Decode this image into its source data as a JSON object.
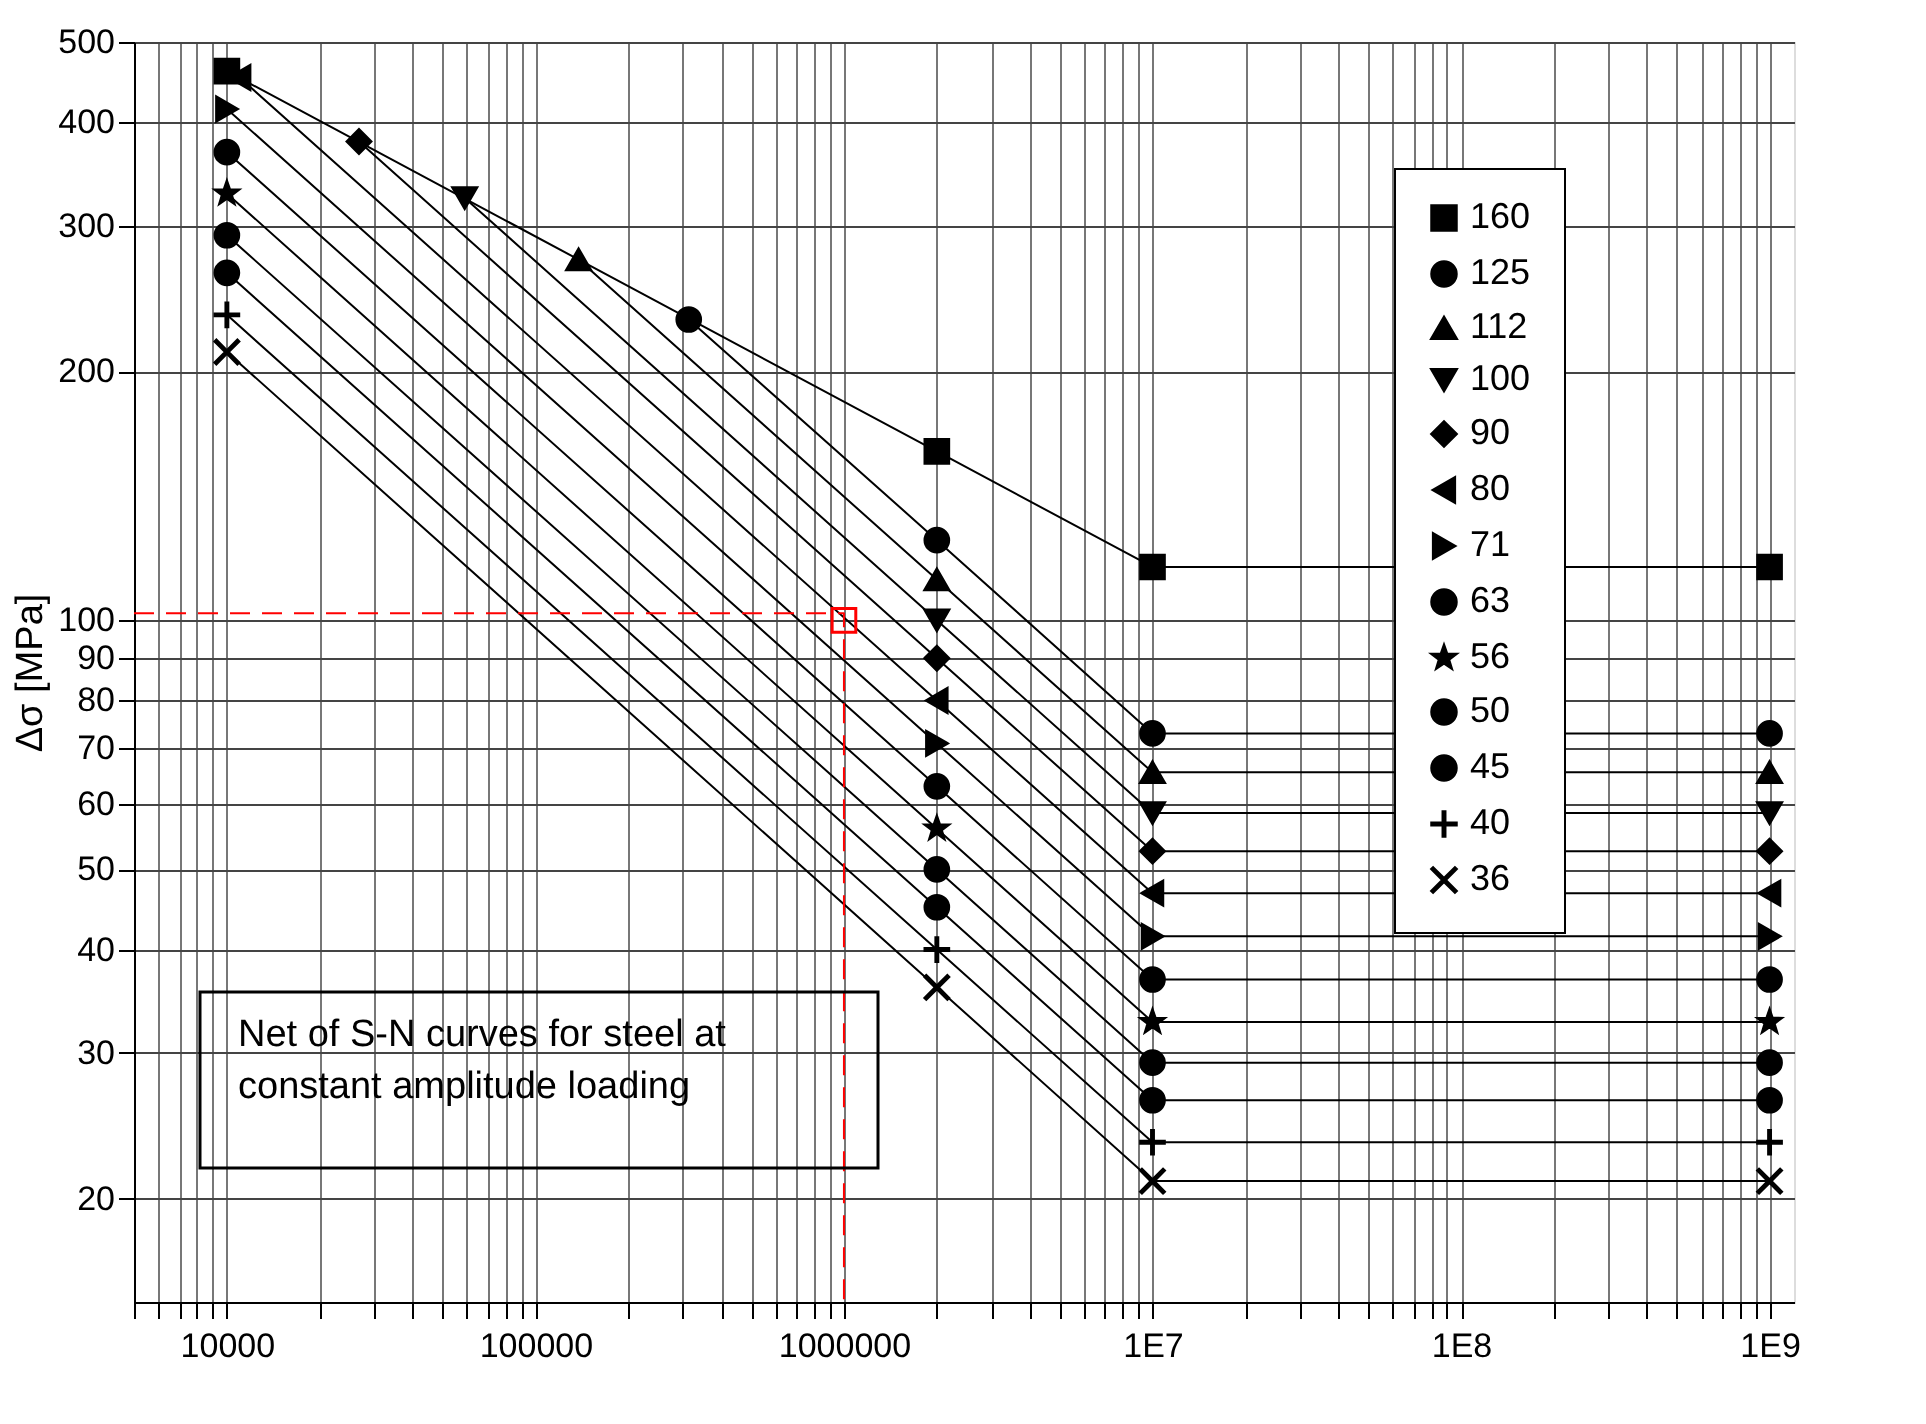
{
  "chart_data": {
    "type": "line",
    "ylabel": "Δσ [MPa]",
    "log": "xy",
    "xlim": [
      5000,
      1200000000
    ],
    "ylim": [
      15,
      500
    ],
    "xticks": [
      {
        "value": 5000,
        "label": null
      },
      {
        "value": 6000,
        "label": null
      },
      {
        "value": 7000,
        "label": null
      },
      {
        "value": 8000,
        "label": null
      },
      {
        "value": 9000,
        "label": null
      },
      10000,
      {
        "value": 20000,
        "label": null
      },
      {
        "value": 30000,
        "label": null
      },
      {
        "value": 40000,
        "label": null
      },
      {
        "value": 50000,
        "label": null
      },
      {
        "value": 60000,
        "label": null
      },
      {
        "value": 70000,
        "label": null
      },
      {
        "value": 80000,
        "label": null
      },
      {
        "value": 90000,
        "label": null
      },
      100000,
      {
        "value": 200000,
        "label": null
      },
      {
        "value": 300000,
        "label": null
      },
      {
        "value": 400000,
        "label": null
      },
      {
        "value": 500000,
        "label": null
      },
      {
        "value": 600000,
        "label": null
      },
      {
        "value": 700000,
        "label": null
      },
      {
        "value": 800000,
        "label": null
      },
      {
        "value": 900000,
        "label": null
      },
      1000000,
      {
        "value": 2000000,
        "label": null
      },
      {
        "value": 3000000,
        "label": null
      },
      {
        "value": 4000000,
        "label": null
      },
      {
        "value": 5000000,
        "label": null
      },
      {
        "value": 6000000,
        "label": null
      },
      {
        "value": 7000000,
        "label": null
      },
      {
        "value": 8000000,
        "label": null
      },
      {
        "value": 9000000,
        "label": null
      },
      {
        "value": 10000000,
        "label": "1E7"
      },
      {
        "value": 20000000,
        "label": null
      },
      {
        "value": 30000000,
        "label": null
      },
      {
        "value": 40000000,
        "label": null
      },
      {
        "value": 50000000,
        "label": null
      },
      {
        "value": 60000000,
        "label": null
      },
      {
        "value": 70000000,
        "label": null
      },
      {
        "value": 80000000,
        "label": null
      },
      {
        "value": 90000000,
        "label": null
      },
      {
        "value": 100000000,
        "label": "1E8"
      },
      {
        "value": 200000000,
        "label": null
      },
      {
        "value": 300000000,
        "label": null
      },
      {
        "value": 400000000,
        "label": null
      },
      {
        "value": 500000000,
        "label": null
      },
      {
        "value": 600000000,
        "label": null
      },
      {
        "value": 700000000,
        "label": null
      },
      {
        "value": 800000000,
        "label": null
      },
      {
        "value": 900000000,
        "label": null
      },
      {
        "value": 1000000000,
        "label": "1E9"
      }
    ],
    "yticks": [
      20,
      30,
      40,
      50,
      60,
      70,
      80,
      90,
      100,
      200,
      300,
      400,
      500
    ],
    "grid": true,
    "legend": "right",
    "annotations": [
      "Net of S-N curves for steel at\nconstant amplitude loading"
    ],
    "series": [
      {
        "name": "160",
        "color": "#000000",
        "marker": "square",
        "x": [
          10000,
          2000000,
          10000000,
          1000000000
        ],
        "values": [
          461,
          160,
          116,
          116
        ]
      },
      {
        "name": "125",
        "color": "#000000",
        "marker": "circle",
        "x": [
          314000,
          2000000,
          10000000,
          1000000000
        ],
        "values": [
          231,
          125,
          73,
          73
        ]
      },
      {
        "name": "112",
        "color": "#000000",
        "marker": "triangle",
        "x": [
          138000,
          2000000,
          10000000,
          1000000000
        ],
        "values": [
          273,
          112,
          65.5,
          65.5
        ]
      },
      {
        "name": "100",
        "color": "#000000",
        "marker": "triangle-down",
        "x": [
          59000,
          2000000,
          10000000,
          1000000000
        ],
        "values": [
          324,
          100,
          58.5,
          58.5
        ]
      },
      {
        "name": "90",
        "color": "#000000",
        "marker": "diamond",
        "x": [
          26800,
          2000000,
          10000000,
          1000000000
        ],
        "values": [
          379,
          90,
          52.6,
          52.6
        ]
      },
      {
        "name": "80",
        "color": "#000000",
        "marker": "triangle-left",
        "x": [
          11000,
          2000000,
          10000000,
          1000000000
        ],
        "values": [
          453,
          80,
          46.8,
          46.8
        ]
      },
      {
        "name": "71",
        "color": "#000000",
        "marker": "triangle-right",
        "x": [
          10000,
          2000000,
          10000000,
          1000000000
        ],
        "values": [
          415,
          71,
          41.5,
          41.5
        ]
      },
      {
        "name": "63",
        "color": "#000000",
        "marker": "circle",
        "x": [
          10000,
          2000000,
          10000000,
          1000000000
        ],
        "values": [
          368,
          63,
          36.8,
          36.8
        ]
      },
      {
        "name": "56",
        "color": "#000000",
        "marker": "star",
        "x": [
          10000,
          2000000,
          10000000,
          1000000000
        ],
        "values": [
          328,
          56,
          32.7,
          32.7
        ]
      },
      {
        "name": "50",
        "color": "#000000",
        "marker": "circle",
        "x": [
          10000,
          2000000,
          10000000,
          1000000000
        ],
        "values": [
          292,
          50,
          29.2,
          29.2
        ]
      },
      {
        "name": "45",
        "color": "#000000",
        "marker": "circle",
        "x": [
          10000,
          2000000,
          10000000,
          1000000000
        ],
        "values": [
          263,
          45,
          26.3,
          26.3
        ]
      },
      {
        "name": "40",
        "color": "#000000",
        "marker": "plus",
        "x": [
          10000,
          2000000,
          10000000,
          1000000000
        ],
        "values": [
          234,
          40,
          23.4,
          23.4
        ]
      },
      {
        "name": "36",
        "color": "#000000",
        "marker": "cross",
        "x": [
          10000,
          2000000,
          10000000,
          1000000000
        ],
        "values": [
          211,
          36,
          21,
          21
        ]
      },
      {
        "color": "#ff0000",
        "marker": "none",
        "line_style": "dashed",
        "x": [
          5000,
          1000000,
          1000000
        ],
        "values": [
          102,
          102,
          15
        ]
      },
      {
        "type": "scatter",
        "color": "#ff0000",
        "marker": "square",
        "x": [
          1000000
        ],
        "values": [
          100
        ]
      }
    ]
  }
}
